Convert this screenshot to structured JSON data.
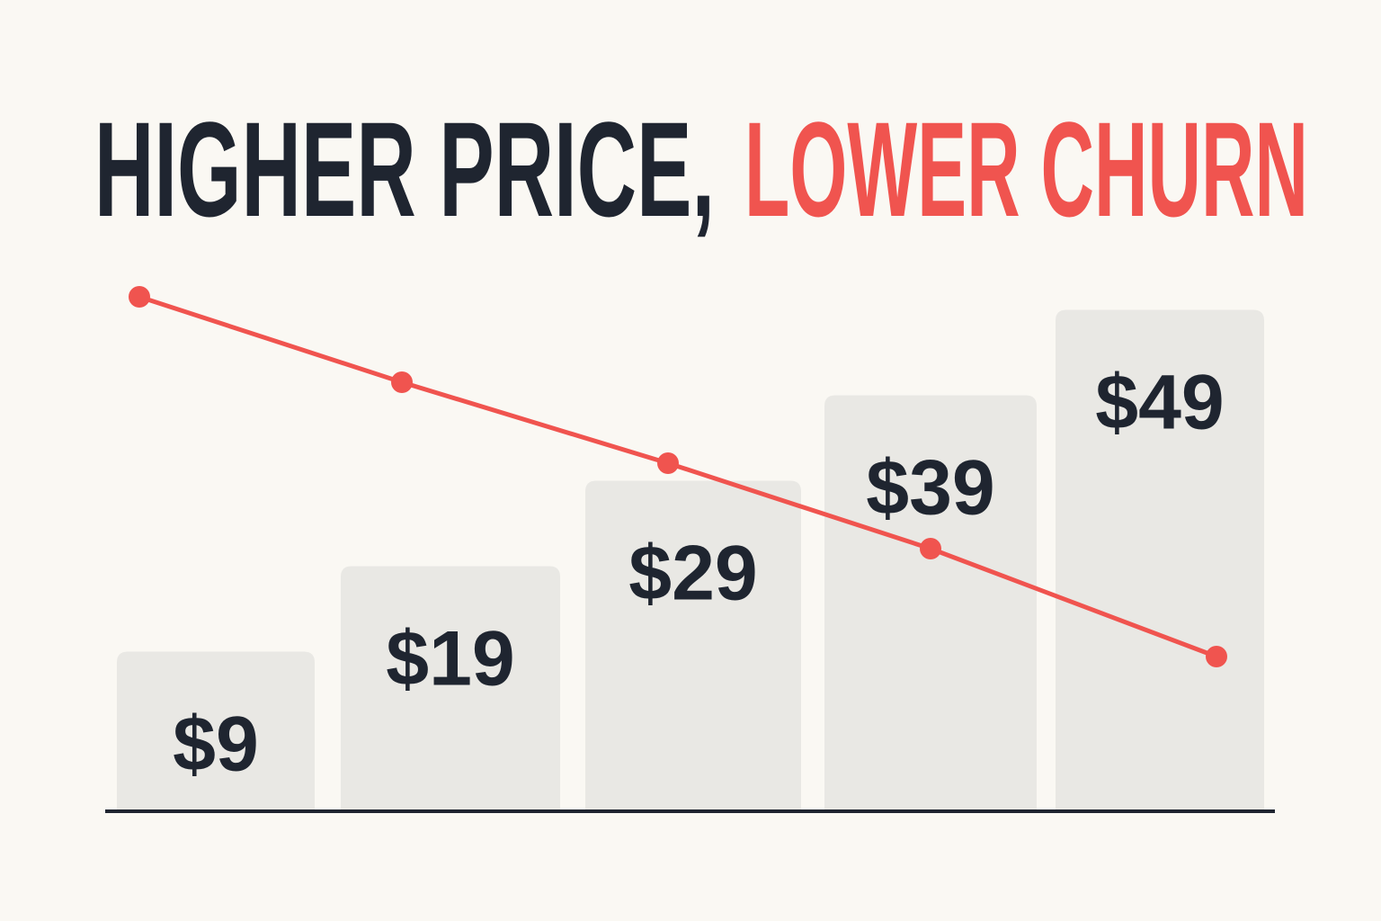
{
  "chart_data": {
    "type": "bar-line",
    "title_parts": [
      {
        "text": "HIGHER PRICE,",
        "color": "#1f2530"
      },
      {
        "text": "LOWER CHURN",
        "color": "#f0544f"
      }
    ],
    "categories": [
      null,
      null,
      null,
      null,
      null
    ],
    "values": [
      9,
      19,
      29,
      39,
      49
    ],
    "value_labels": [
      "$9",
      "$19",
      "$29",
      "$39",
      "$49"
    ],
    "color": "#e9e8e4",
    "line": {
      "color": "#f0544f",
      "values": [
        57,
        47.5,
        38.5,
        29,
        17
      ]
    }
  }
}
